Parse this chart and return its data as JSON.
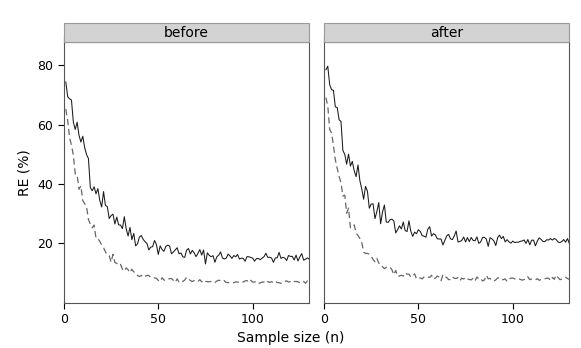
{
  "title_before": "before",
  "title_after": "after",
  "xlabel": "Sample size (n)",
  "ylabel": "RE (%)",
  "xlim_before": [
    0,
    130
  ],
  "xlim_after": [
    0,
    130
  ],
  "ylim": [
    0,
    88
  ],
  "yticks": [
    20,
    40,
    60,
    80
  ],
  "xticks": [
    0,
    50,
    100
  ],
  "line_color_solid": "#1a1a1a",
  "line_color_dashed": "#666666",
  "background_color": "#ffffff",
  "panel_header_color": "#d3d3d3",
  "before_solid_start": 73,
  "before_solid_end": 15,
  "before_dashed_start": 65,
  "before_dashed_end": 7,
  "after_solid_start": 81,
  "after_solid_end": 21,
  "after_dashed_start": 72,
  "after_dashed_end": 8
}
